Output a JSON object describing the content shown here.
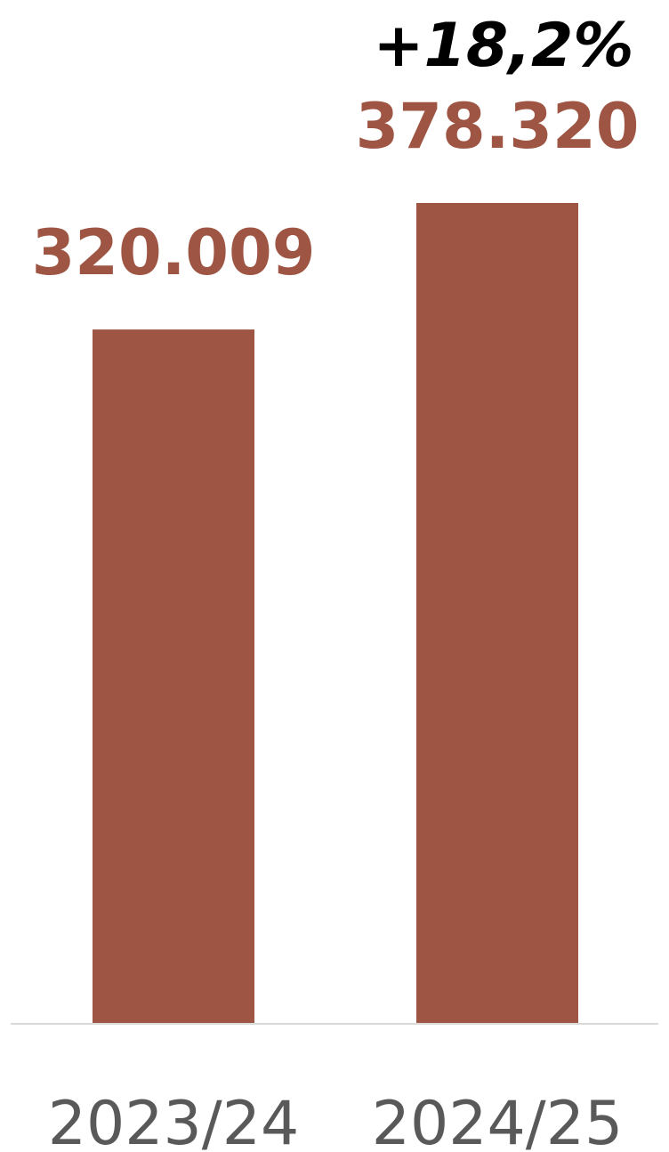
{
  "chart_data": {
    "type": "bar",
    "categories": [
      "2023/24",
      "2024/25"
    ],
    "values": [
      320009,
      378320
    ],
    "value_labels": [
      "320.009",
      "378.320"
    ],
    "annotation": "+18,2%",
    "title": "",
    "xlabel": "",
    "ylabel": "",
    "ylim": [
      0,
      378320
    ],
    "grid": false,
    "bar_color": "#9E5543",
    "axis_color": "#D9D9D9"
  }
}
